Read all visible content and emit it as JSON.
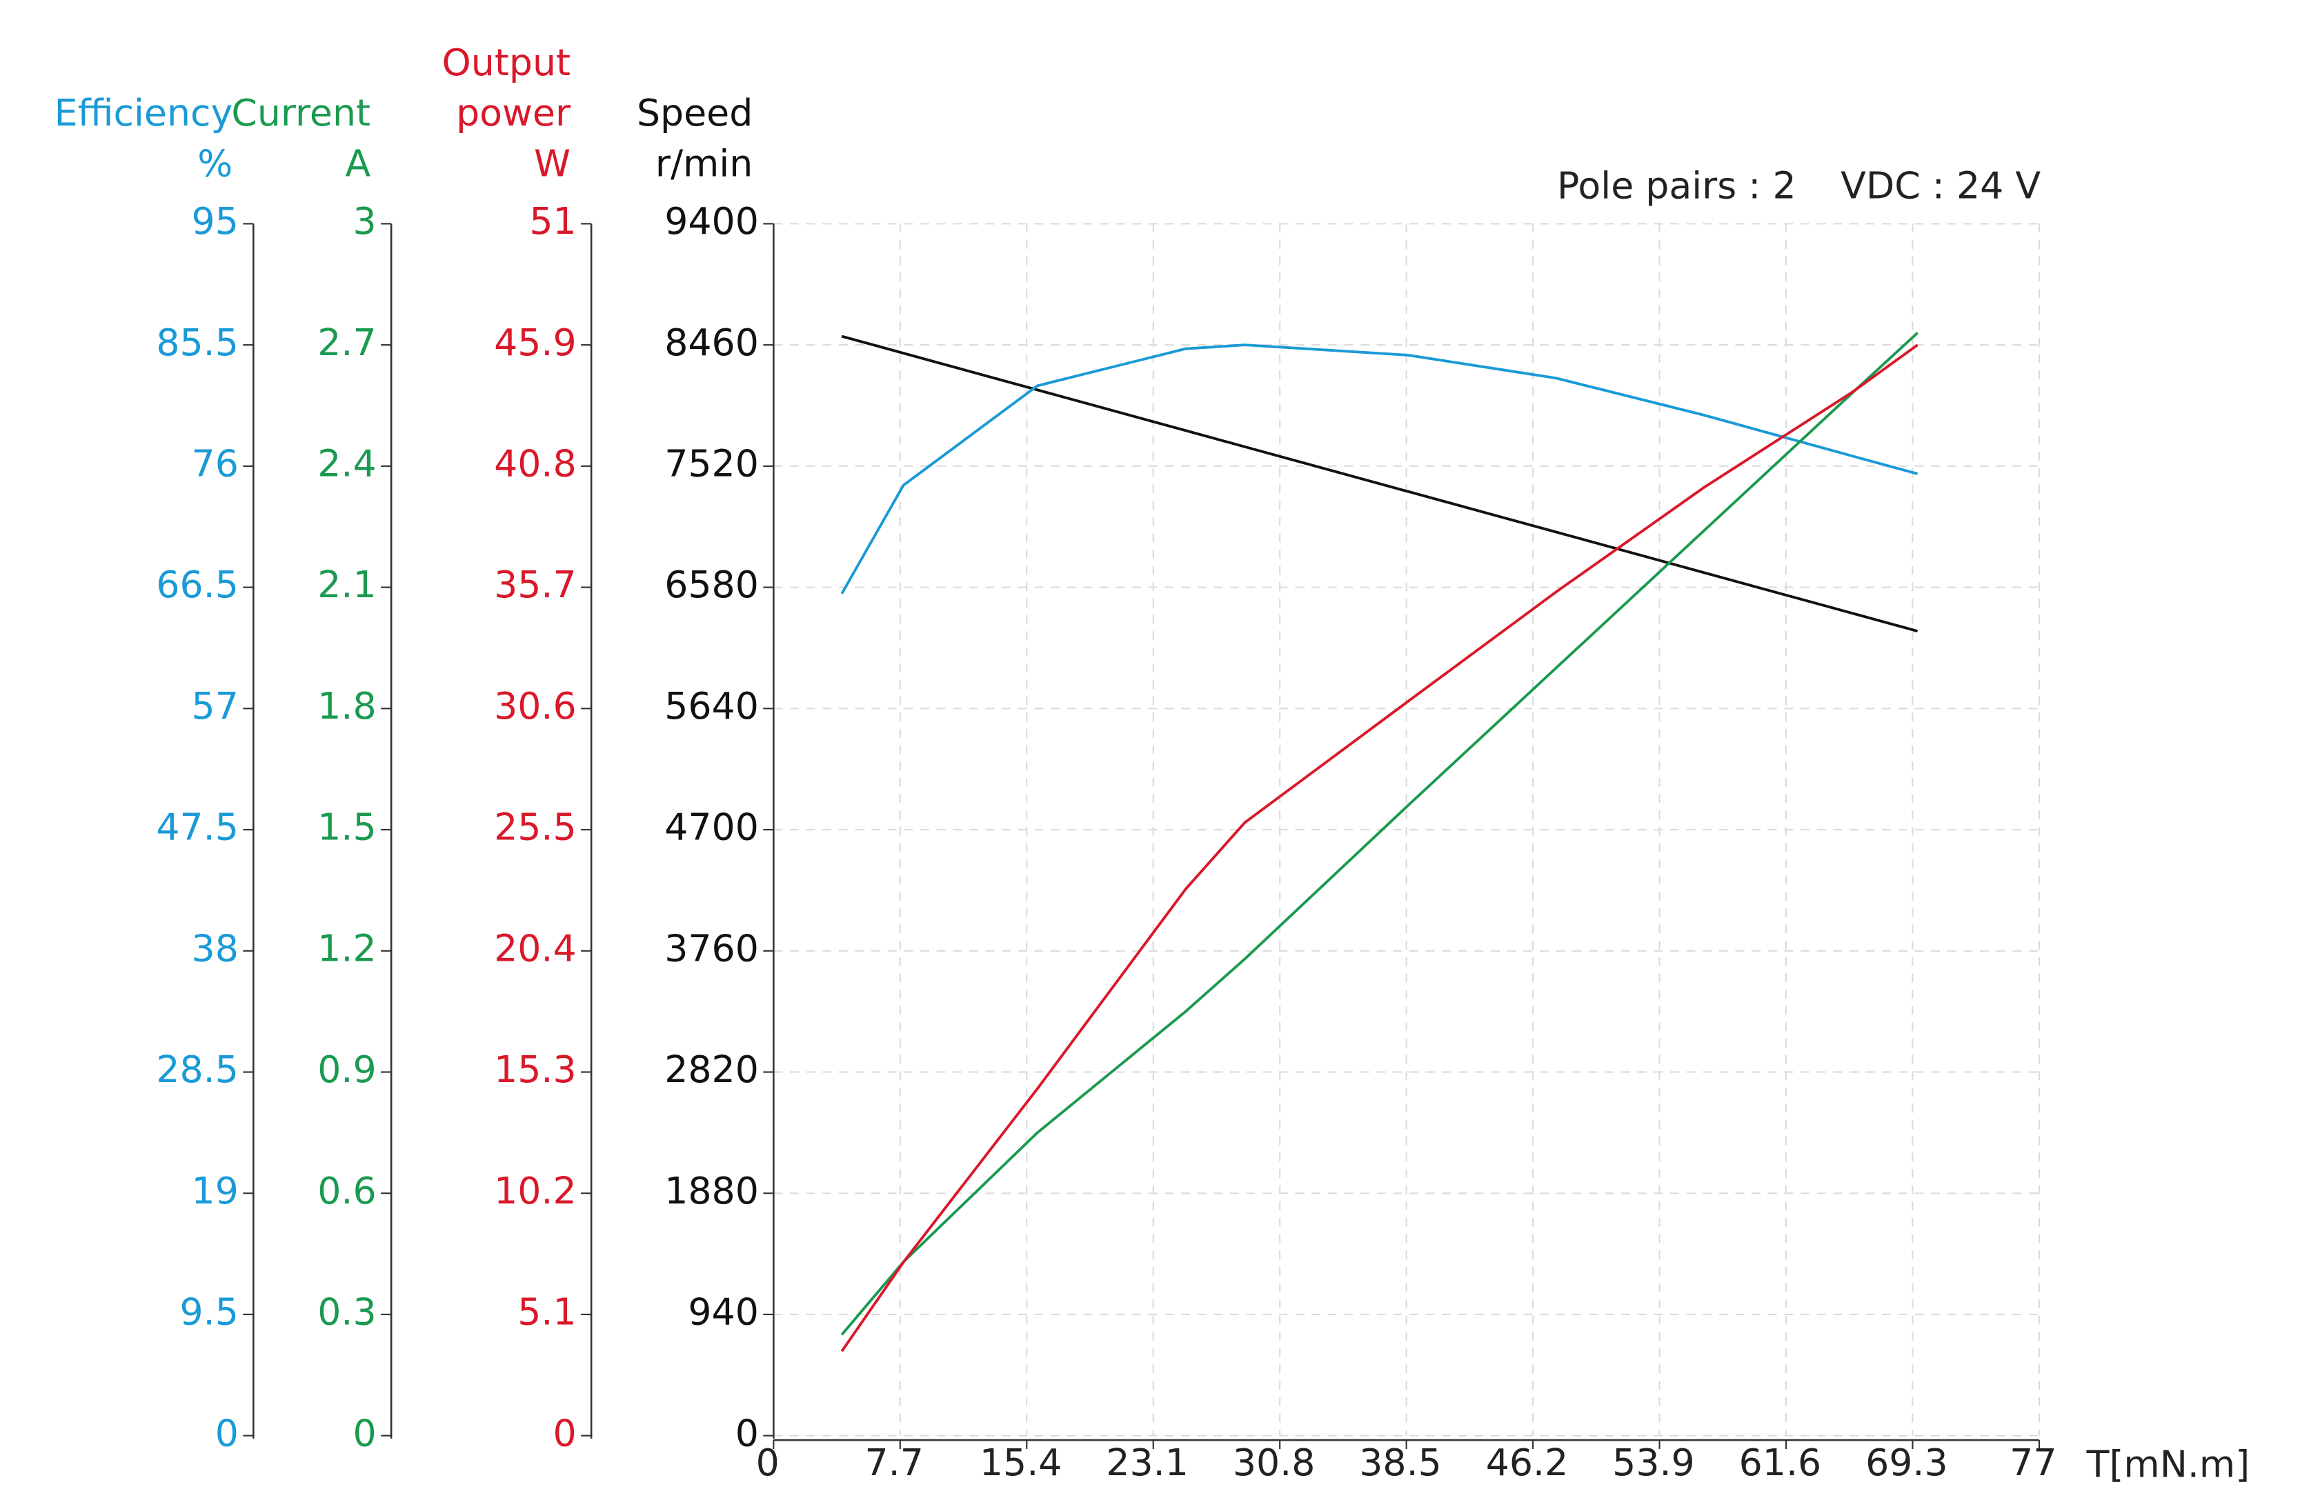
{
  "chart_data": {
    "type": "line",
    "annotations": [
      "Pole pairs : 2",
      "VDC : 24 V"
    ],
    "xlabel": "T[mN.m]",
    "x": [
      4.15,
      7.9,
      16.05,
      25.07,
      28.67,
      38.6,
      47.6,
      56.6,
      65.6,
      69.6
    ],
    "xlim": [
      0,
      77
    ],
    "xticks": [
      0,
      7.7,
      15.4,
      23.1,
      30.8,
      38.5,
      46.2,
      53.9,
      61.6,
      69.3,
      77
    ],
    "ylabel": [
      "Speed"
    ],
    "yunit": "r/min",
    "ylim": [
      0,
      9400
    ],
    "yticks": [
      0,
      940,
      1880,
      2820,
      3760,
      4700,
      5640,
      6580,
      7520,
      8460,
      9400
    ],
    "y2label": [
      "Output",
      "power"
    ],
    "y2unit": "W",
    "y2lim": [
      0,
      51
    ],
    "y2ticks": [
      0,
      5.1,
      10.2,
      15.3,
      20.4,
      25.5,
      30.6,
      35.7,
      40.8,
      45.9,
      51
    ],
    "y3label": [
      "Current"
    ],
    "y3unit": "A",
    "y3lim": [
      0,
      3
    ],
    "y3ticks": [
      0,
      0.3,
      0.6,
      0.9,
      1.2,
      1.5,
      1.8,
      2.1,
      2.4,
      2.7,
      3
    ],
    "y4label": [
      "Efficiency"
    ],
    "y4unit": "%",
    "y4lim": [
      0,
      95
    ],
    "y4ticks": [
      0,
      9.5,
      19,
      28.5,
      38,
      47.5,
      57,
      66.5,
      76,
      85.5,
      95
    ],
    "grid": true,
    "series": [
      {
        "axis": "y",
        "color": "#111111",
        "values": [
          8527,
          8396,
          8111,
          7796,
          7670,
          7323,
          7009,
          6694,
          6380,
          6240
        ]
      },
      {
        "axis": "y4",
        "color": "#1a9ad6",
        "values": [
          66,
          74.5,
          82.3,
          85.2,
          85.5,
          84.7,
          82.9,
          80.0,
          76.8,
          75.4
        ]
      },
      {
        "axis": "y3",
        "color": "#1a9a50",
        "values": [
          0.25,
          0.43,
          0.75,
          1.05,
          1.18,
          1.56,
          1.9,
          2.24,
          2.58,
          2.73
        ]
      },
      {
        "axis": "y2",
        "color": "#d9182a",
        "values": [
          3.55,
          7.3,
          14.6,
          23.0,
          25.8,
          30.9,
          35.5,
          39.9,
          43.9,
          45.9
        ]
      }
    ]
  }
}
